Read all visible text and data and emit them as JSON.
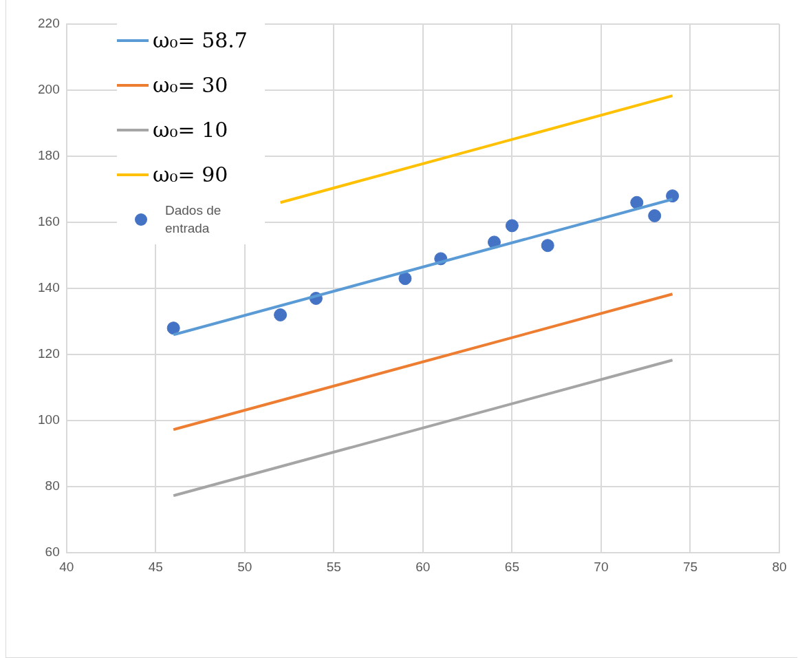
{
  "chart_data": {
    "type": "line",
    "xlim": [
      40,
      80
    ],
    "xticks": [
      40,
      45,
      50,
      55,
      60,
      65,
      70,
      75,
      80
    ],
    "ylim": [
      60,
      220
    ],
    "yticks": [
      60,
      80,
      100,
      120,
      140,
      160,
      180,
      200,
      220
    ],
    "grid": true,
    "legend": "top left",
    "marker": "none",
    "series": [
      {
        "name": "ω₀= 58.7",
        "color": "#5b9bd5",
        "x": [
          46,
          74
        ],
        "values": [
          126,
          167
        ]
      },
      {
        "name": "ω₀= 30",
        "color": "#ed7d31",
        "x": [
          46,
          74
        ],
        "values": [
          97.3,
          138.3
        ]
      },
      {
        "name": "ω₀= 10",
        "color": "#a5a5a5",
        "x": [
          46,
          74
        ],
        "values": [
          77.3,
          118.3
        ]
      },
      {
        "name": "ω₀= 90",
        "color": "#ffc000",
        "x": [
          52,
          74
        ],
        "values": [
          166,
          198.3
        ]
      },
      {
        "name": "Dados de entrada",
        "type": "scatter",
        "marker": "circle",
        "color": "#4472c4",
        "x": [
          46,
          52,
          54,
          59,
          61,
          64,
          65,
          67,
          72,
          73,
          74
        ],
        "values": [
          128,
          132,
          137,
          143,
          149,
          154,
          159,
          153,
          166,
          162,
          168
        ]
      }
    ]
  }
}
